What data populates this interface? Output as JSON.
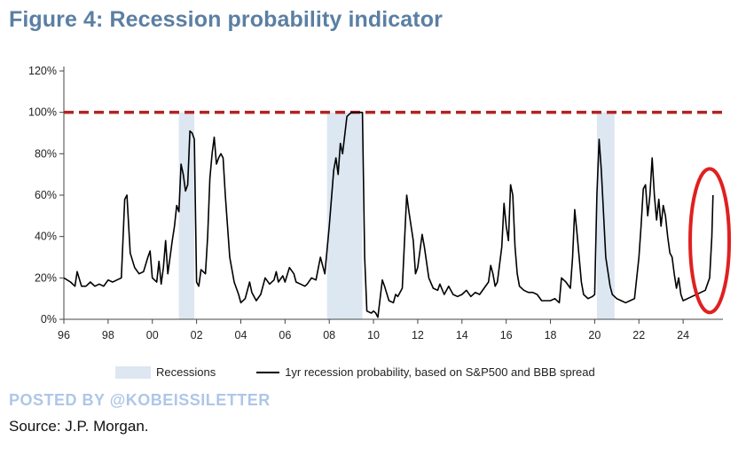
{
  "title": "Figure 4: Recession probability indicator",
  "chart_data": {
    "type": "line",
    "title": "Figure 4: Recession probability indicator",
    "xlim": [
      1996,
      2025.8
    ],
    "ylim": [
      0,
      120
    ],
    "x_ticks": [
      1996,
      1998,
      2000,
      2002,
      2004,
      2006,
      2008,
      2010,
      2012,
      2014,
      2016,
      2018,
      2020,
      2022,
      2024
    ],
    "x_tick_labels": [
      "96",
      "98",
      "00",
      "02",
      "04",
      "06",
      "08",
      "10",
      "12",
      "14",
      "16",
      "18",
      "20",
      "22",
      "24"
    ],
    "y_ticks": [
      0,
      20,
      40,
      60,
      80,
      100,
      120
    ],
    "y_tick_labels": [
      "0%",
      "20%",
      "40%",
      "60%",
      "80%",
      "100%",
      "120%"
    ],
    "threshold": {
      "value": 100,
      "color": "#b22222"
    },
    "recessions": [
      {
        "start": 2001.2,
        "end": 2001.9
      },
      {
        "start": 2007.9,
        "end": 2009.5
      },
      {
        "start": 2020.1,
        "end": 2020.9
      }
    ],
    "series": [
      {
        "name": "1yr recession probability, based on S&P500 and BBB spread",
        "color": "#000000",
        "points": [
          [
            1996.0,
            20
          ],
          [
            1996.3,
            18
          ],
          [
            1996.5,
            16
          ],
          [
            1996.6,
            23
          ],
          [
            1996.8,
            16
          ],
          [
            1997.0,
            16
          ],
          [
            1997.2,
            18
          ],
          [
            1997.4,
            16
          ],
          [
            1997.6,
            17
          ],
          [
            1997.8,
            16
          ],
          [
            1998.0,
            19
          ],
          [
            1998.2,
            18
          ],
          [
            1998.4,
            19
          ],
          [
            1998.6,
            20
          ],
          [
            1998.75,
            58
          ],
          [
            1998.85,
            60
          ],
          [
            1999.0,
            32
          ],
          [
            1999.2,
            25
          ],
          [
            1999.4,
            22
          ],
          [
            1999.6,
            23
          ],
          [
            1999.8,
            30
          ],
          [
            1999.9,
            33
          ],
          [
            2000.0,
            20
          ],
          [
            2000.2,
            18
          ],
          [
            2000.3,
            28
          ],
          [
            2000.4,
            17
          ],
          [
            2000.5,
            25
          ],
          [
            2000.6,
            38
          ],
          [
            2000.7,
            22
          ],
          [
            2000.9,
            38
          ],
          [
            2001.0,
            45
          ],
          [
            2001.1,
            55
          ],
          [
            2001.2,
            52
          ],
          [
            2001.3,
            75
          ],
          [
            2001.4,
            70
          ],
          [
            2001.5,
            62
          ],
          [
            2001.6,
            65
          ],
          [
            2001.7,
            91
          ],
          [
            2001.8,
            90
          ],
          [
            2001.9,
            87
          ],
          [
            2002.0,
            18
          ],
          [
            2002.1,
            16
          ],
          [
            2002.2,
            24
          ],
          [
            2002.4,
            22
          ],
          [
            2002.5,
            40
          ],
          [
            2002.6,
            68
          ],
          [
            2002.7,
            80
          ],
          [
            2002.8,
            88
          ],
          [
            2002.9,
            75
          ],
          [
            2003.0,
            78
          ],
          [
            2003.1,
            80
          ],
          [
            2003.2,
            78
          ],
          [
            2003.3,
            60
          ],
          [
            2003.5,
            30
          ],
          [
            2003.7,
            18
          ],
          [
            2003.9,
            12
          ],
          [
            2004.0,
            8
          ],
          [
            2004.2,
            10
          ],
          [
            2004.4,
            18
          ],
          [
            2004.5,
            13
          ],
          [
            2004.7,
            9
          ],
          [
            2004.9,
            12
          ],
          [
            2005.0,
            16
          ],
          [
            2005.1,
            20
          ],
          [
            2005.3,
            17
          ],
          [
            2005.5,
            19
          ],
          [
            2005.6,
            23
          ],
          [
            2005.7,
            18
          ],
          [
            2005.9,
            21
          ],
          [
            2006.0,
            18
          ],
          [
            2006.2,
            25
          ],
          [
            2006.4,
            22
          ],
          [
            2006.5,
            18
          ],
          [
            2006.7,
            17
          ],
          [
            2006.9,
            16
          ],
          [
            2007.0,
            17
          ],
          [
            2007.2,
            20
          ],
          [
            2007.4,
            19
          ],
          [
            2007.6,
            30
          ],
          [
            2007.8,
            22
          ],
          [
            2008.0,
            45
          ],
          [
            2008.2,
            72
          ],
          [
            2008.3,
            78
          ],
          [
            2008.4,
            70
          ],
          [
            2008.5,
            85
          ],
          [
            2008.6,
            80
          ],
          [
            2008.8,
            98
          ],
          [
            2009.0,
            100
          ],
          [
            2009.2,
            100
          ],
          [
            2009.5,
            100
          ],
          [
            2009.6,
            30
          ],
          [
            2009.7,
            4
          ],
          [
            2009.9,
            3
          ],
          [
            2010.0,
            4
          ],
          [
            2010.1,
            3
          ],
          [
            2010.2,
            1
          ],
          [
            2010.4,
            19
          ],
          [
            2010.5,
            16
          ],
          [
            2010.7,
            9
          ],
          [
            2010.9,
            8
          ],
          [
            2011.0,
            12
          ],
          [
            2011.1,
            11
          ],
          [
            2011.3,
            15
          ],
          [
            2011.5,
            60
          ],
          [
            2011.6,
            52
          ],
          [
            2011.8,
            38
          ],
          [
            2011.9,
            22
          ],
          [
            2012.0,
            25
          ],
          [
            2012.2,
            41
          ],
          [
            2012.3,
            35
          ],
          [
            2012.5,
            20
          ],
          [
            2012.7,
            15
          ],
          [
            2012.9,
            14
          ],
          [
            2013.0,
            17
          ],
          [
            2013.2,
            12
          ],
          [
            2013.4,
            16
          ],
          [
            2013.6,
            12
          ],
          [
            2013.8,
            11
          ],
          [
            2014.0,
            12
          ],
          [
            2014.2,
            14
          ],
          [
            2014.4,
            11
          ],
          [
            2014.6,
            13
          ],
          [
            2014.8,
            12
          ],
          [
            2015.0,
            15
          ],
          [
            2015.2,
            18
          ],
          [
            2015.3,
            26
          ],
          [
            2015.4,
            22
          ],
          [
            2015.5,
            16
          ],
          [
            2015.6,
            18
          ],
          [
            2015.8,
            35
          ],
          [
            2015.9,
            56
          ],
          [
            2016.0,
            45
          ],
          [
            2016.1,
            38
          ],
          [
            2016.2,
            65
          ],
          [
            2016.3,
            60
          ],
          [
            2016.4,
            35
          ],
          [
            2016.5,
            22
          ],
          [
            2016.6,
            16
          ],
          [
            2016.8,
            14
          ],
          [
            2017.0,
            13
          ],
          [
            2017.2,
            13
          ],
          [
            2017.4,
            12
          ],
          [
            2017.6,
            9
          ],
          [
            2017.8,
            9
          ],
          [
            2018.0,
            9
          ],
          [
            2018.2,
            10
          ],
          [
            2018.4,
            8
          ],
          [
            2018.5,
            20
          ],
          [
            2018.7,
            18
          ],
          [
            2018.9,
            15
          ],
          [
            2019.0,
            30
          ],
          [
            2019.1,
            53
          ],
          [
            2019.2,
            42
          ],
          [
            2019.4,
            18
          ],
          [
            2019.5,
            12
          ],
          [
            2019.7,
            10
          ],
          [
            2019.9,
            11
          ],
          [
            2020.0,
            12
          ],
          [
            2020.1,
            60
          ],
          [
            2020.2,
            87
          ],
          [
            2020.3,
            72
          ],
          [
            2020.5,
            30
          ],
          [
            2020.7,
            16
          ],
          [
            2020.8,
            12
          ],
          [
            2021.0,
            10
          ],
          [
            2021.2,
            9
          ],
          [
            2021.4,
            8
          ],
          [
            2021.6,
            9
          ],
          [
            2021.8,
            10
          ],
          [
            2021.9,
            20
          ],
          [
            2022.0,
            30
          ],
          [
            2022.1,
            45
          ],
          [
            2022.2,
            63
          ],
          [
            2022.3,
            65
          ],
          [
            2022.4,
            50
          ],
          [
            2022.5,
            60
          ],
          [
            2022.6,
            78
          ],
          [
            2022.7,
            60
          ],
          [
            2022.8,
            48
          ],
          [
            2022.9,
            58
          ],
          [
            2023.0,
            45
          ],
          [
            2023.1,
            55
          ],
          [
            2023.2,
            50
          ],
          [
            2023.3,
            40
          ],
          [
            2023.4,
            32
          ],
          [
            2023.5,
            30
          ],
          [
            2023.6,
            22
          ],
          [
            2023.7,
            15
          ],
          [
            2023.8,
            20
          ],
          [
            2023.9,
            12
          ],
          [
            2024.0,
            9
          ],
          [
            2024.2,
            10
          ],
          [
            2024.4,
            11
          ],
          [
            2024.6,
            12
          ],
          [
            2024.8,
            13
          ],
          [
            2025.0,
            14
          ],
          [
            2025.2,
            20
          ],
          [
            2025.3,
            40
          ],
          [
            2025.35,
            60
          ]
        ]
      }
    ],
    "annotation": {
      "type": "ellipse-highlight",
      "color": "#e02020",
      "target_x": 2025.2
    }
  },
  "legend": {
    "recessions_label": "Recessions",
    "line_label": "1yr recession probability, based on S&P500 and BBB spread"
  },
  "watermark": "POSTED BY @KOBEISSILETTER",
  "source": "Source: J.P. Morgan.",
  "colors": {
    "title": "#5b7fa3",
    "recession_fill": "#dde7f2",
    "threshold": "#b22222",
    "highlight": "#e02020"
  }
}
